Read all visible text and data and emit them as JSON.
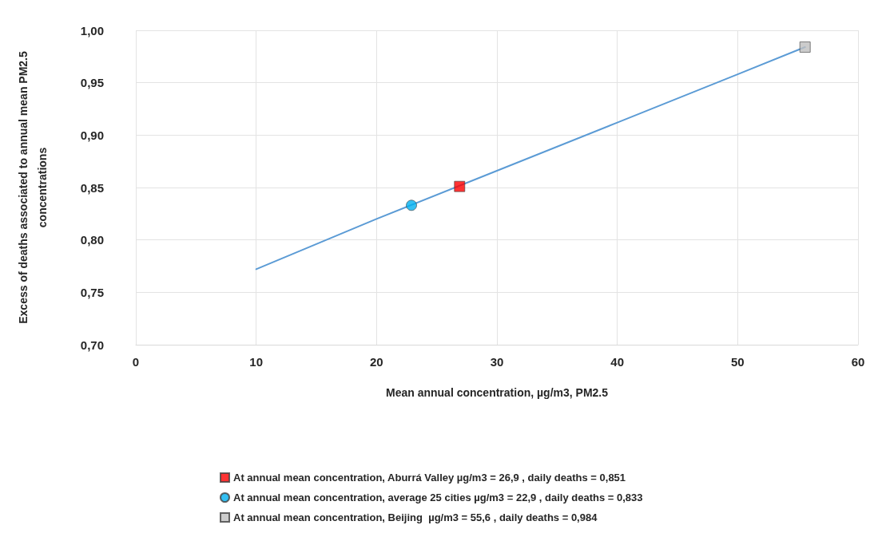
{
  "chart_data": {
    "type": "line",
    "xlabel": "Mean annual concentration, µg/m3, PM2.5",
    "ylabel": "Excess of deaths associated to annual mean PM2.5\nconcentrations",
    "xlim": [
      0,
      60
    ],
    "xticks": [
      0,
      10,
      20,
      30,
      40,
      50,
      60
    ],
    "ylim": [
      0.7,
      1.0
    ],
    "yticks": [
      {
        "value": 0.7,
        "label": "0,70"
      },
      {
        "value": 0.75,
        "label": "0,75"
      },
      {
        "value": 0.8,
        "label": "0,80"
      },
      {
        "value": 0.85,
        "label": "0,85"
      },
      {
        "value": 0.9,
        "label": "0,90"
      },
      {
        "value": 0.95,
        "label": "0,95"
      },
      {
        "value": 1.0,
        "label": "1,00"
      }
    ],
    "grid": true,
    "legend": "bottom",
    "marker": "none",
    "line_style": "solid",
    "series": [
      {
        "color": "#5b9bd5",
        "x": [
          10,
          20,
          30,
          40,
          50,
          55.6
        ],
        "values": [
          0.772,
          0.82,
          0.866,
          0.912,
          0.958,
          0.984
        ]
      },
      {
        "type": "scatter",
        "marker": "square",
        "name": "At annual mean concentration, Aburrá Valley µg/m3 = 26,9 , daily deaths = 0,851",
        "color": "#ff0000",
        "x": [
          26.9
        ],
        "values": [
          0.851
        ]
      },
      {
        "type": "scatter",
        "marker": "circle",
        "name": "At annual mean concentration, average 25 cities µg/m3 = 22,9 , daily deaths = 0,833",
        "color": "#00b0f0",
        "x": [
          22.9
        ],
        "values": [
          0.833
        ]
      },
      {
        "type": "scatter",
        "marker": "square",
        "name": "At annual mean concentration, Beijing  µg/m3 = 55,6 , daily deaths = 0,984",
        "color": "#bfbfbf",
        "x": [
          55.6
        ],
        "values": [
          0.984
        ]
      }
    ]
  }
}
